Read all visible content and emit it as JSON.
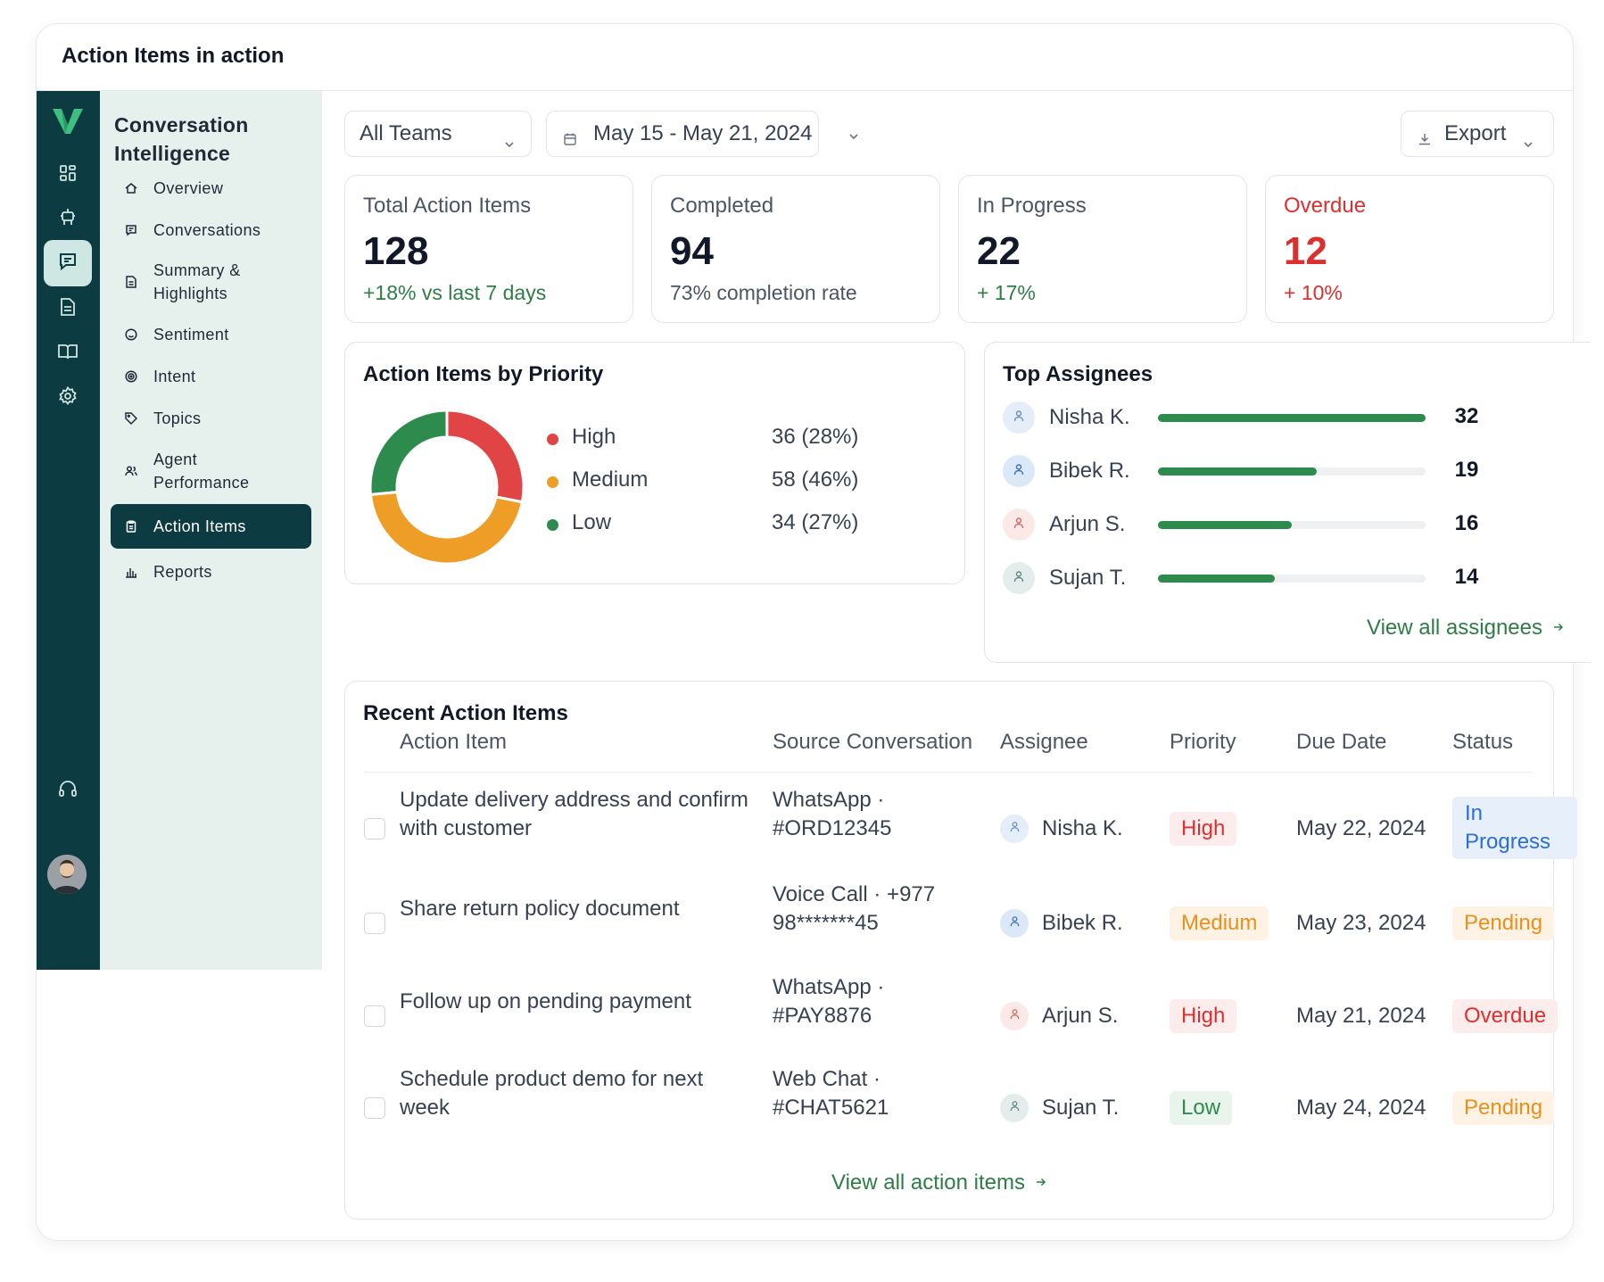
{
  "window": {
    "title": "Action Items in action"
  },
  "nav": {
    "title": "Conversation Intelligence",
    "items": [
      {
        "label": "Overview",
        "icon": "home-icon"
      },
      {
        "label": "Conversations",
        "icon": "chat-icon"
      },
      {
        "label": "Summary & Highlights",
        "icon": "document-icon"
      },
      {
        "label": "Sentiment",
        "icon": "smile-icon"
      },
      {
        "label": "Intent",
        "icon": "target-icon"
      },
      {
        "label": "Topics",
        "icon": "tag-icon"
      },
      {
        "label": "Agent Performance",
        "icon": "users-icon"
      },
      {
        "label": "Action Items",
        "icon": "clipboard-icon",
        "active": true
      },
      {
        "label": "Reports",
        "icon": "bar-chart-icon"
      }
    ]
  },
  "toolbar": {
    "teams": "All Teams",
    "date_range": "May 15 - May 21, 2024",
    "export": "Export"
  },
  "stats": [
    {
      "label": "Total Action Items",
      "value": "128",
      "sub": "+18% vs last 7 days"
    },
    {
      "label": "Completed",
      "value": "94",
      "sub": "73% completion rate"
    },
    {
      "label": "In Progress",
      "value": "22",
      "sub": "+ 17%"
    },
    {
      "label": "Overdue",
      "value": "12",
      "sub": "+ 10%"
    }
  ],
  "priority": {
    "title": "Action Items by Priority",
    "legend": [
      {
        "name": "High",
        "display": "36 (28%)"
      },
      {
        "name": "Medium",
        "display": "58 (46%)"
      },
      {
        "name": "Low",
        "display": "34 (27%)"
      }
    ]
  },
  "chart_data": {
    "type": "pie",
    "categories": [
      "High",
      "Medium",
      "Low"
    ],
    "values": [
      36,
      58,
      34
    ],
    "colors": [
      "#e04444",
      "#ee9d27",
      "#2e8b4e"
    ],
    "donut": true
  },
  "assignees": {
    "title": "Top Assignees",
    "max": 32,
    "items": [
      {
        "name": "Nisha K.",
        "count": 32
      },
      {
        "name": "Bibek R.",
        "count": 19
      },
      {
        "name": "Arjun S.",
        "count": 16
      },
      {
        "name": "Sujan T.",
        "count": 14
      }
    ],
    "view_all": "View all assignees"
  },
  "recent": {
    "title": "Recent Action Items",
    "columns": [
      "Action Item",
      "Source Conversation",
      "Assignee",
      "Priority",
      "Due Date",
      "Status"
    ],
    "rows": [
      {
        "item": "Update delivery address and confirm with customer",
        "source": "WhatsApp · #ORD12345",
        "assignee": "Nisha K.",
        "priority": "High",
        "due": "May 22, 2024",
        "status": "In Progress"
      },
      {
        "item": "Share return policy document",
        "source": "Voice Call · +977 98*******45",
        "assignee": "Bibek R.",
        "priority": "Medium",
        "due": "May 23, 2024",
        "status": "Pending"
      },
      {
        "item": "Follow up on pending payment",
        "source": "WhatsApp · #PAY8876",
        "assignee": "Arjun S.",
        "priority": "High",
        "due": "May 21, 2024",
        "status": "Overdue"
      },
      {
        "item": "Schedule product demo for next week",
        "source": "Web Chat · #CHAT5621",
        "assignee": "Sujan T.",
        "priority": "Low",
        "due": "May 24, 2024",
        "status": "Pending"
      }
    ],
    "view_all": "View all action items"
  }
}
